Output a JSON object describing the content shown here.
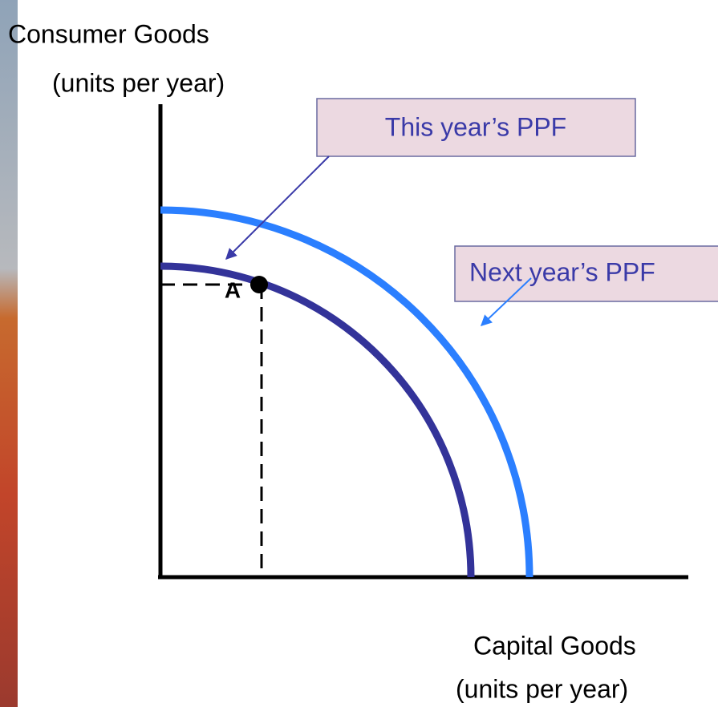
{
  "axes": {
    "y_label": "Consumer Goods",
    "y_units": "(units per year)",
    "x_label": "Capital Goods",
    "x_units": "(units per year)"
  },
  "callouts": {
    "this_year": "This year’s PPF",
    "next_year": "Next year’s PPF"
  },
  "point": {
    "label": "A"
  }
}
